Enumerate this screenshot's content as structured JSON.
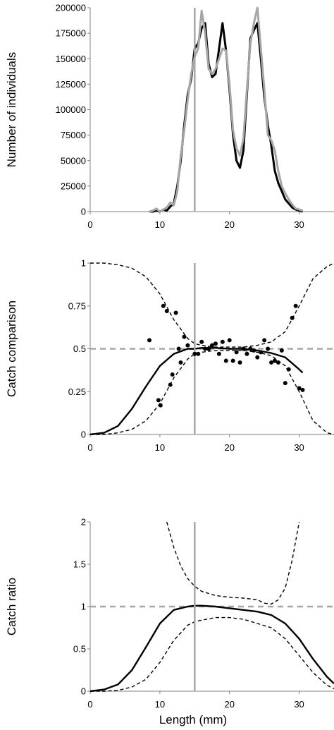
{
  "colors": {
    "black": "#000000",
    "gray": "#a6a6a6",
    "axis": "#808080"
  },
  "xlabel": "Length (mm)",
  "chart_data": [
    {
      "type": "line",
      "ylabel": "Number of individuals",
      "xlim": [
        0,
        35
      ],
      "ylim": [
        0,
        200000
      ],
      "xticks": [
        "0",
        "10",
        "20",
        "30"
      ],
      "yticks": [
        "0",
        "25000",
        "50000",
        "75000",
        "100000",
        "125000",
        "150000",
        "175000",
        "200000"
      ],
      "vline": 15,
      "series": [
        {
          "color": "#000000",
          "style": "solid",
          "x": [
            8.5,
            9,
            9.5,
            10,
            10.5,
            11,
            11.5,
            12,
            12.5,
            13,
            13.5,
            14,
            14.5,
            15,
            15.5,
            16,
            16.5,
            17,
            17.5,
            18,
            18.5,
            19,
            19.5,
            20,
            20.5,
            21,
            21.5,
            22,
            22.5,
            23,
            23.5,
            24,
            24.5,
            25,
            25.5,
            26,
            26.5,
            27,
            27.5,
            28,
            28.5,
            29,
            29.5,
            30,
            30.5
          ],
          "y": [
            0,
            0,
            1000,
            0,
            2000,
            1000,
            5000,
            8000,
            25000,
            50000,
            85000,
            115000,
            130000,
            160000,
            165000,
            180000,
            185000,
            145000,
            132000,
            135000,
            160000,
            185000,
            158000,
            120000,
            75000,
            50000,
            43000,
            60000,
            115000,
            170000,
            178000,
            185000,
            150000,
            112000,
            85000,
            65000,
            40000,
            28000,
            20000,
            12000,
            8000,
            4000,
            2000,
            1000,
            0
          ]
        },
        {
          "color": "#a6a6a6",
          "style": "solid",
          "x": [
            8.5,
            9,
            9.5,
            10,
            10.5,
            11,
            11.5,
            12,
            12.5,
            13,
            13.5,
            14,
            14.5,
            15,
            15.5,
            16,
            16.5,
            17,
            17.5,
            18,
            18.5,
            19,
            19.5,
            20,
            20.5,
            21,
            21.5,
            22,
            22.5,
            23,
            23.5,
            24,
            24.5,
            25,
            25.5,
            26,
            26.5,
            27,
            27.5,
            28,
            28.5,
            29,
            29.5,
            30,
            30.5
          ],
          "y": [
            0,
            1000,
            3000,
            0,
            2000,
            4000,
            9000,
            6000,
            20000,
            55000,
            80000,
            110000,
            135000,
            152000,
            160000,
            197000,
            175000,
            140000,
            135000,
            140000,
            150000,
            160000,
            158000,
            125000,
            80000,
            62000,
            55000,
            72000,
            120000,
            165000,
            185000,
            200000,
            160000,
            120000,
            75000,
            70000,
            60000,
            40000,
            25000,
            18000,
            12000,
            7000,
            3000,
            2000,
            1000
          ]
        }
      ]
    },
    {
      "type": "scatter",
      "ylabel": "Catch comparison",
      "xlim": [
        0,
        35
      ],
      "ylim": [
        0,
        1
      ],
      "xticks": [
        "0",
        "10",
        "20",
        "30"
      ],
      "yticks": [
        "0",
        "0.25",
        "0.5",
        "0.75",
        "1"
      ],
      "vline": 15,
      "hline": 0.5,
      "points": {
        "x": [
          8.5,
          9.8,
          10.1,
          10.5,
          11,
          11.5,
          11.8,
          12.3,
          12.7,
          13,
          13.5,
          14,
          15,
          15.5,
          16,
          16.5,
          17,
          17.5,
          18,
          18.5,
          19,
          19.5,
          20,
          20.5,
          21,
          21.5,
          22,
          22.5,
          23,
          23.5,
          24,
          24.5,
          25,
          25.5,
          26,
          26.5,
          27,
          27.5,
          28,
          28.5,
          29,
          29.5,
          30,
          30.5
        ],
        "y": [
          0.55,
          0.2,
          0.17,
          0.75,
          0.72,
          0.29,
          0.35,
          0.71,
          0.5,
          0.42,
          0.57,
          0.52,
          0.47,
          0.47,
          0.54,
          0.5,
          0.5,
          0.52,
          0.53,
          0.47,
          0.54,
          0.43,
          0.55,
          0.43,
          0.48,
          0.42,
          0.5,
          0.47,
          0.5,
          0.49,
          0.45,
          0.48,
          0.55,
          0.5,
          0.42,
          0.43,
          0.42,
          0.49,
          0.3,
          0.38,
          0.68,
          0.75,
          0.27,
          0.26
        ]
      },
      "series": [
        {
          "color": "#000000",
          "style": "solid",
          "x": [
            0,
            2,
            4,
            6,
            8,
            10,
            12,
            14,
            15,
            16,
            18,
            20,
            22,
            24,
            26,
            28,
            30,
            30.5
          ],
          "y": [
            0,
            0.01,
            0.05,
            0.15,
            0.28,
            0.4,
            0.47,
            0.5,
            0.5,
            0.505,
            0.505,
            0.5,
            0.5,
            0.49,
            0.475,
            0.45,
            0.38,
            0.36
          ]
        },
        {
          "color": "#000000",
          "style": "dashed",
          "x": [
            0,
            2,
            4,
            6,
            8,
            10,
            12,
            14,
            15,
            16,
            18,
            20,
            22,
            24,
            26,
            28,
            30,
            32,
            34,
            35
          ],
          "y": [
            0,
            0,
            0.01,
            0.03,
            0.08,
            0.18,
            0.33,
            0.44,
            0.47,
            0.48,
            0.49,
            0.49,
            0.49,
            0.48,
            0.46,
            0.4,
            0.25,
            0.08,
            0.01,
            0
          ]
        },
        {
          "color": "#000000",
          "style": "dashed",
          "x": [
            0,
            2,
            4,
            6,
            8,
            10,
            12,
            14,
            15,
            16,
            18,
            20,
            22,
            24,
            26,
            28,
            30,
            32,
            34,
            35
          ],
          "y": [
            1,
            1,
            0.99,
            0.97,
            0.92,
            0.82,
            0.67,
            0.56,
            0.53,
            0.52,
            0.51,
            0.51,
            0.51,
            0.52,
            0.54,
            0.6,
            0.75,
            0.91,
            0.98,
            1
          ]
        }
      ]
    },
    {
      "type": "line",
      "ylabel": "Catch ratio",
      "xlim": [
        0,
        35
      ],
      "ylim": [
        0,
        2
      ],
      "xticks": [
        "0",
        "10",
        "20",
        "30"
      ],
      "yticks": [
        "0",
        "0.5",
        "1",
        "1.5",
        "2"
      ],
      "vline": 15,
      "hline": 1,
      "series": [
        {
          "color": "#000000",
          "style": "solid",
          "x": [
            0,
            2,
            4,
            6,
            8,
            10,
            12,
            14,
            15,
            16,
            18,
            20,
            22,
            24,
            26,
            28,
            30,
            32,
            34,
            35
          ],
          "y": [
            0,
            0.02,
            0.08,
            0.25,
            0.52,
            0.8,
            0.96,
            1.0,
            1.01,
            1.01,
            1.0,
            0.98,
            0.96,
            0.94,
            0.9,
            0.8,
            0.62,
            0.38,
            0.17,
            0.09
          ]
        },
        {
          "color": "#000000",
          "style": "dashed",
          "x": [
            0,
            2,
            4,
            6,
            8,
            10,
            12,
            14,
            15,
            16,
            18,
            20,
            22,
            24,
            26,
            28,
            30,
            32,
            34,
            35
          ],
          "y": [
            0,
            0,
            0.01,
            0.05,
            0.14,
            0.34,
            0.6,
            0.78,
            0.82,
            0.84,
            0.87,
            0.87,
            0.85,
            0.8,
            0.75,
            0.62,
            0.42,
            0.22,
            0.07,
            0.03
          ]
        },
        {
          "color": "#000000",
          "style": "dashed",
          "x": [
            11,
            12,
            13,
            14,
            15,
            16,
            18,
            20,
            22,
            24,
            25,
            26,
            27,
            28,
            29,
            30
          ],
          "y": [
            2.0,
            1.7,
            1.48,
            1.33,
            1.24,
            1.18,
            1.13,
            1.11,
            1.1,
            1.08,
            1.04,
            1.03,
            1.08,
            1.22,
            1.55,
            2.0
          ]
        }
      ]
    }
  ]
}
